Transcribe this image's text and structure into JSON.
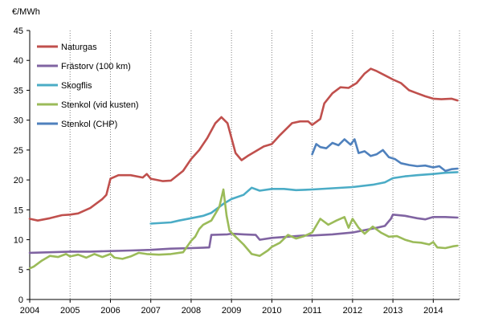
{
  "chart_data": {
    "type": "line",
    "ylabel": "€/MWh",
    "xlabel": "",
    "ylim": [
      0,
      45
    ],
    "xlim": [
      2004,
      2014.65
    ],
    "x_ticks": [
      "2004",
      "2005",
      "2006",
      "2007",
      "2008",
      "2009",
      "2010",
      "2011",
      "2012",
      "2013",
      "2014"
    ],
    "y_ticks": [
      "0",
      "5",
      "10",
      "15",
      "20",
      "25",
      "30",
      "35",
      "40",
      "45"
    ],
    "grid": {
      "vertical": "dotted",
      "horizontal": "none"
    },
    "legend_position": "top-left",
    "series": [
      {
        "name": "Naturgas",
        "color": "#C0504D",
        "points": [
          [
            2004.0,
            13.5
          ],
          [
            2004.2,
            13.2
          ],
          [
            2004.5,
            13.6
          ],
          [
            2004.8,
            14.1
          ],
          [
            2005.0,
            14.2
          ],
          [
            2005.2,
            14.4
          ],
          [
            2005.5,
            15.3
          ],
          [
            2005.8,
            16.8
          ],
          [
            2005.9,
            17.5
          ],
          [
            2006.0,
            20.2
          ],
          [
            2006.2,
            20.8
          ],
          [
            2006.5,
            20.8
          ],
          [
            2006.8,
            20.4
          ],
          [
            2006.9,
            21.0
          ],
          [
            2007.0,
            20.2
          ],
          [
            2007.3,
            19.8
          ],
          [
            2007.5,
            19.9
          ],
          [
            2007.8,
            21.5
          ],
          [
            2008.0,
            23.5
          ],
          [
            2008.2,
            25.0
          ],
          [
            2008.4,
            27.0
          ],
          [
            2008.6,
            29.5
          ],
          [
            2008.75,
            30.5
          ],
          [
            2008.9,
            29.5
          ],
          [
            2009.0,
            27.0
          ],
          [
            2009.1,
            24.5
          ],
          [
            2009.25,
            23.3
          ],
          [
            2009.4,
            24.0
          ],
          [
            2009.6,
            24.8
          ],
          [
            2009.8,
            25.6
          ],
          [
            2010.0,
            26.0
          ],
          [
            2010.2,
            27.5
          ],
          [
            2010.5,
            29.5
          ],
          [
            2010.7,
            29.8
          ],
          [
            2010.9,
            29.8
          ],
          [
            2011.0,
            29.2
          ],
          [
            2011.2,
            30.2
          ],
          [
            2011.3,
            32.8
          ],
          [
            2011.5,
            34.5
          ],
          [
            2011.7,
            35.5
          ],
          [
            2011.9,
            35.4
          ],
          [
            2012.1,
            36.2
          ],
          [
            2012.3,
            37.8
          ],
          [
            2012.45,
            38.6
          ],
          [
            2012.6,
            38.2
          ],
          [
            2012.8,
            37.5
          ],
          [
            2013.0,
            36.8
          ],
          [
            2013.2,
            36.2
          ],
          [
            2013.4,
            35.0
          ],
          [
            2013.6,
            34.5
          ],
          [
            2013.8,
            34.0
          ],
          [
            2014.0,
            33.6
          ],
          [
            2014.2,
            33.5
          ],
          [
            2014.45,
            33.6
          ],
          [
            2014.6,
            33.3
          ]
        ]
      },
      {
        "name": "Frästorv (100 km)",
        "color": "#8064A2",
        "points": [
          [
            2004.0,
            7.8
          ],
          [
            2004.5,
            7.9
          ],
          [
            2005.0,
            8.0
          ],
          [
            2005.5,
            8.0
          ],
          [
            2006.0,
            8.1
          ],
          [
            2006.5,
            8.2
          ],
          [
            2007.0,
            8.3
          ],
          [
            2007.5,
            8.5
          ],
          [
            2008.0,
            8.6
          ],
          [
            2008.45,
            8.7
          ],
          [
            2008.5,
            10.8
          ],
          [
            2008.9,
            10.9
          ],
          [
            2009.0,
            11.0
          ],
          [
            2009.3,
            10.9
          ],
          [
            2009.6,
            10.8
          ],
          [
            2009.7,
            10.0
          ],
          [
            2010.0,
            10.3
          ],
          [
            2010.4,
            10.5
          ],
          [
            2010.8,
            10.7
          ],
          [
            2011.0,
            10.7
          ],
          [
            2011.5,
            10.9
          ],
          [
            2012.0,
            11.2
          ],
          [
            2012.3,
            11.6
          ],
          [
            2012.6,
            12.0
          ],
          [
            2012.8,
            12.3
          ],
          [
            2012.95,
            13.5
          ],
          [
            2013.0,
            14.2
          ],
          [
            2013.3,
            14.0
          ],
          [
            2013.6,
            13.6
          ],
          [
            2013.8,
            13.4
          ],
          [
            2014.0,
            13.8
          ],
          [
            2014.3,
            13.8
          ],
          [
            2014.6,
            13.7
          ]
        ]
      },
      {
        "name": "Skogflis",
        "color": "#4BACC6",
        "points": [
          [
            2007.0,
            12.7
          ],
          [
            2007.5,
            12.9
          ],
          [
            2007.7,
            13.2
          ],
          [
            2008.0,
            13.6
          ],
          [
            2008.3,
            14.0
          ],
          [
            2008.5,
            14.5
          ],
          [
            2008.8,
            16.0
          ],
          [
            2009.0,
            16.8
          ],
          [
            2009.3,
            17.5
          ],
          [
            2009.5,
            18.7
          ],
          [
            2009.7,
            18.2
          ],
          [
            2010.0,
            18.5
          ],
          [
            2010.3,
            18.5
          ],
          [
            2010.6,
            18.3
          ],
          [
            2011.0,
            18.4
          ],
          [
            2011.5,
            18.6
          ],
          [
            2012.0,
            18.8
          ],
          [
            2012.5,
            19.2
          ],
          [
            2012.8,
            19.6
          ],
          [
            2013.0,
            20.3
          ],
          [
            2013.3,
            20.6
          ],
          [
            2013.6,
            20.8
          ],
          [
            2014.0,
            21.0
          ],
          [
            2014.3,
            21.2
          ],
          [
            2014.6,
            21.3
          ]
        ]
      },
      {
        "name": "Stenkol (vid kusten)",
        "color": "#9BBB59",
        "points": [
          [
            2004.0,
            5.2
          ],
          [
            2004.1,
            5.5
          ],
          [
            2004.3,
            6.5
          ],
          [
            2004.5,
            7.3
          ],
          [
            2004.7,
            7.1
          ],
          [
            2004.9,
            7.6
          ],
          [
            2005.0,
            7.2
          ],
          [
            2005.2,
            7.5
          ],
          [
            2005.4,
            7.0
          ],
          [
            2005.6,
            7.6
          ],
          [
            2005.8,
            7.1
          ],
          [
            2006.0,
            7.6
          ],
          [
            2006.1,
            7.0
          ],
          [
            2006.3,
            6.8
          ],
          [
            2006.5,
            7.2
          ],
          [
            2006.7,
            7.8
          ],
          [
            2006.9,
            7.6
          ],
          [
            2007.2,
            7.5
          ],
          [
            2007.5,
            7.6
          ],
          [
            2007.8,
            7.9
          ],
          [
            2008.0,
            9.8
          ],
          [
            2008.1,
            10.5
          ],
          [
            2008.2,
            11.8
          ],
          [
            2008.3,
            12.5
          ],
          [
            2008.5,
            13.2
          ],
          [
            2008.7,
            15.5
          ],
          [
            2008.8,
            18.4
          ],
          [
            2008.88,
            14.0
          ],
          [
            2008.95,
            11.5
          ],
          [
            2009.1,
            10.5
          ],
          [
            2009.3,
            9.2
          ],
          [
            2009.5,
            7.6
          ],
          [
            2009.7,
            7.3
          ],
          [
            2009.9,
            8.2
          ],
          [
            2010.0,
            8.8
          ],
          [
            2010.2,
            9.5
          ],
          [
            2010.4,
            10.8
          ],
          [
            2010.6,
            10.2
          ],
          [
            2010.8,
            10.6
          ],
          [
            2011.0,
            11.2
          ],
          [
            2011.2,
            13.5
          ],
          [
            2011.4,
            12.5
          ],
          [
            2011.6,
            13.2
          ],
          [
            2011.8,
            13.8
          ],
          [
            2011.9,
            12.0
          ],
          [
            2012.0,
            13.5
          ],
          [
            2012.15,
            12.0
          ],
          [
            2012.3,
            11.0
          ],
          [
            2012.5,
            12.2
          ],
          [
            2012.7,
            11.2
          ],
          [
            2012.9,
            10.5
          ],
          [
            2013.1,
            10.6
          ],
          [
            2013.3,
            10.0
          ],
          [
            2013.5,
            9.6
          ],
          [
            2013.7,
            9.5
          ],
          [
            2013.9,
            9.2
          ],
          [
            2014.0,
            9.6
          ],
          [
            2014.1,
            8.7
          ],
          [
            2014.3,
            8.6
          ],
          [
            2014.5,
            8.9
          ],
          [
            2014.6,
            9.0
          ]
        ]
      },
      {
        "name": "Stenkol (CHP)",
        "color": "#4F81BD",
        "points": [
          [
            2011.0,
            24.3
          ],
          [
            2011.1,
            26.0
          ],
          [
            2011.2,
            25.5
          ],
          [
            2011.35,
            25.3
          ],
          [
            2011.5,
            26.2
          ],
          [
            2011.65,
            25.8
          ],
          [
            2011.8,
            26.8
          ],
          [
            2011.95,
            25.9
          ],
          [
            2012.05,
            26.8
          ],
          [
            2012.15,
            24.5
          ],
          [
            2012.3,
            24.8
          ],
          [
            2012.45,
            24.0
          ],
          [
            2012.6,
            24.3
          ],
          [
            2012.75,
            25.0
          ],
          [
            2012.9,
            23.8
          ],
          [
            2013.05,
            23.5
          ],
          [
            2013.2,
            22.8
          ],
          [
            2013.4,
            22.5
          ],
          [
            2013.6,
            22.3
          ],
          [
            2013.8,
            22.4
          ],
          [
            2014.0,
            22.1
          ],
          [
            2014.15,
            22.3
          ],
          [
            2014.3,
            21.5
          ],
          [
            2014.45,
            21.8
          ],
          [
            2014.6,
            21.9
          ]
        ]
      }
    ]
  }
}
